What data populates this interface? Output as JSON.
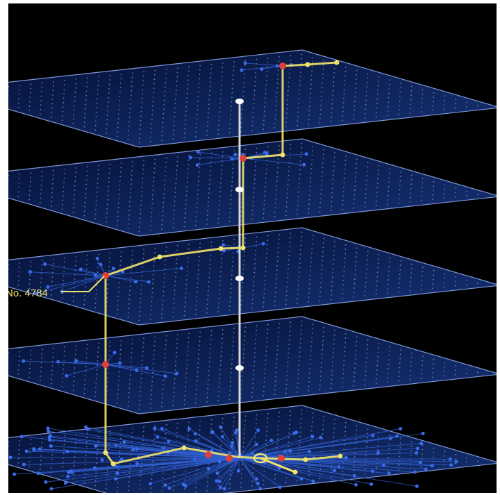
{
  "annotation": {
    "label": "No. 4784"
  }
}
